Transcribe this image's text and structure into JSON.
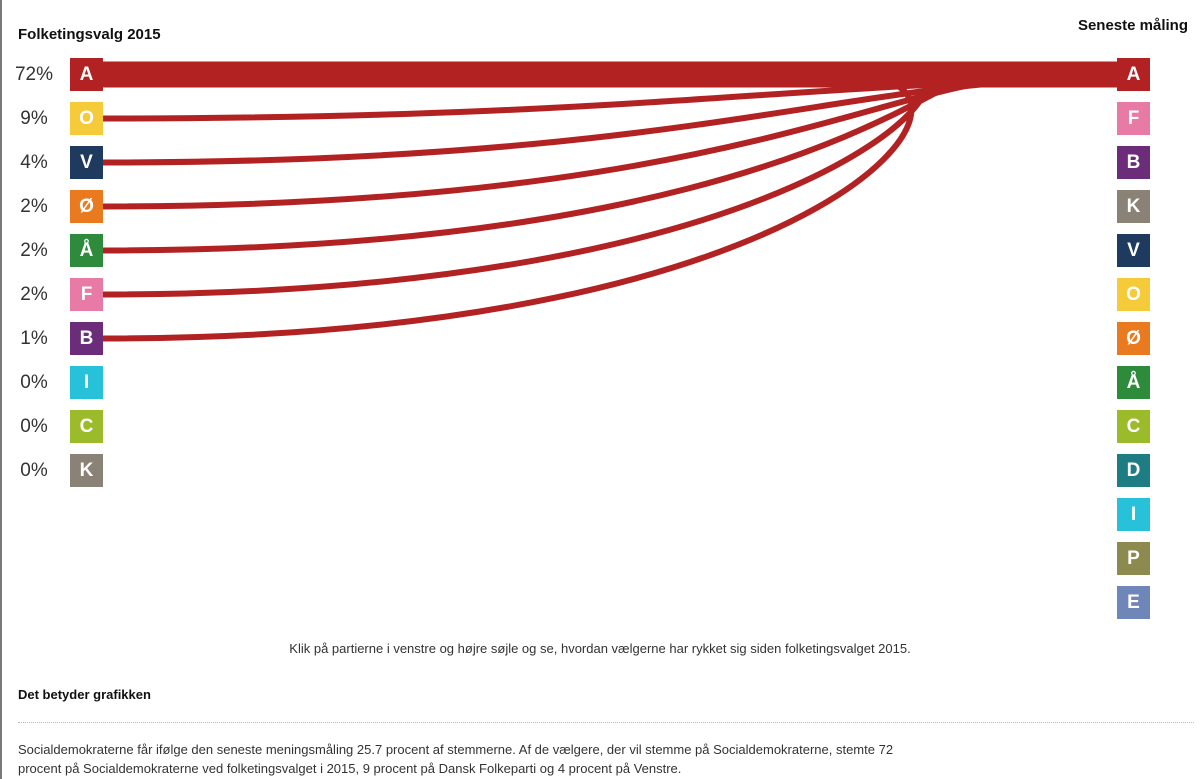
{
  "header": {
    "left_title": "Folketingsvalg 2015",
    "right_title": "Seneste måling"
  },
  "chart_data": {
    "type": "sankey",
    "left_column": {
      "title": "Folketingsvalg 2015",
      "parties": [
        {
          "letter": "A",
          "percent_label": "72%",
          "value": 72,
          "color": "#b22222"
        },
        {
          "letter": "O",
          "percent_label": "9%",
          "value": 9,
          "color": "#f5cb3a"
        },
        {
          "letter": "V",
          "percent_label": "4%",
          "value": 4,
          "color": "#1f3a5f"
        },
        {
          "letter": "Ø",
          "percent_label": "2%",
          "value": 2,
          "color": "#ea7a1f"
        },
        {
          "letter": "Å",
          "percent_label": "2%",
          "value": 2,
          "color": "#2e8b3b"
        },
        {
          "letter": "F",
          "percent_label": "2%",
          "value": 2,
          "color": "#e87aa6"
        },
        {
          "letter": "B",
          "percent_label": "1%",
          "value": 1,
          "color": "#6b2d7a"
        },
        {
          "letter": "I",
          "percent_label": "0%",
          "value": 0,
          "color": "#27c1d9"
        },
        {
          "letter": "C",
          "percent_label": "0%",
          "value": 0,
          "color": "#9bbb2a"
        },
        {
          "letter": "K",
          "percent_label": "0%",
          "value": 0,
          "color": "#8a8276"
        }
      ]
    },
    "right_column": {
      "title": "Seneste måling",
      "parties": [
        {
          "letter": "A",
          "color": "#b22222"
        },
        {
          "letter": "F",
          "color": "#e87aa6"
        },
        {
          "letter": "B",
          "color": "#6b2d7a"
        },
        {
          "letter": "K",
          "color": "#8a8276"
        },
        {
          "letter": "V",
          "color": "#1f3a5f"
        },
        {
          "letter": "O",
          "color": "#f5cb3a"
        },
        {
          "letter": "Ø",
          "color": "#ea7a1f"
        },
        {
          "letter": "Å",
          "color": "#2e8b3b"
        },
        {
          "letter": "C",
          "color": "#9bbb2a"
        },
        {
          "letter": "D",
          "color": "#1d7d83"
        },
        {
          "letter": "I",
          "color": "#27c1d9"
        },
        {
          "letter": "P",
          "color": "#8c8a4e"
        },
        {
          "letter": "E",
          "color": "#6f86b8"
        }
      ]
    },
    "flows": [
      {
        "from": "A",
        "to": "A",
        "value": 72
      },
      {
        "from": "O",
        "to": "A",
        "value": 9
      },
      {
        "from": "V",
        "to": "A",
        "value": 4
      },
      {
        "from": "Ø",
        "to": "A",
        "value": 2
      },
      {
        "from": "Å",
        "to": "A",
        "value": 2
      },
      {
        "from": "F",
        "to": "A",
        "value": 2
      },
      {
        "from": "B",
        "to": "A",
        "value": 1
      }
    ],
    "flow_color": "#b22222"
  },
  "caption": "Klik på partierne i venstre og højre søjle og se, hvordan vælgerne har rykket sig siden folketingsvalget 2015.",
  "explanation": {
    "title": "Det betyder grafikken",
    "text": "Socialdemokraterne får ifølge den seneste meningsmåling 25.7 procent af stemmerne. Af de vælgere, der vil stemme på Socialdemokraterne, stemte 72 procent på Socialdemokraterne ved folketingsvalget i 2015, 9 procent på Dansk Folkeparti og 4 procent på Venstre."
  }
}
